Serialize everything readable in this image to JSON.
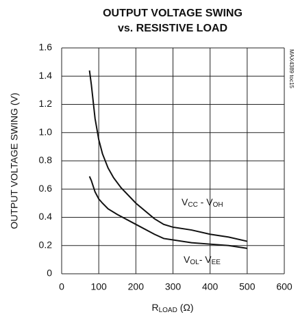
{
  "chart_data": {
    "type": "line",
    "title": [
      "OUTPUT VOLTAGE SWING",
      "vs. RESISTIVE LOAD"
    ],
    "y_label": "OUTPUT VOLTAGE SWING (V)",
    "x_label": [
      "R",
      "LOAD",
      " (Ω)"
    ],
    "annotation": "MAX4389 toc15",
    "xlim": [
      0,
      600
    ],
    "xticks": [
      0,
      100,
      200,
      300,
      400,
      500,
      600
    ],
    "ylim": [
      0,
      1.6
    ],
    "yticks": [
      0,
      {
        "value": 0.2,
        "label": "0.2"
      },
      {
        "value": 0.4,
        "label": "0.4"
      },
      {
        "value": 0.6,
        "label": "0.6"
      },
      {
        "value": 0.8,
        "label": "0.8"
      },
      {
        "value": 1,
        "label": "1.0"
      },
      {
        "value": 1.2,
        "label": "1.2"
      },
      {
        "value": 1.4,
        "label": "1.4"
      },
      {
        "value": 1.6,
        "label": "1.6"
      }
    ],
    "grid": true,
    "series": [
      {
        "name": [
          "V",
          "CC",
          " - V",
          "OH"
        ],
        "color": "#111",
        "x": [
          75,
          80,
          90,
          100,
          110,
          125,
          140,
          160,
          200,
          250,
          275,
          300,
          350,
          400,
          450,
          500
        ],
        "values": [
          1.44,
          1.34,
          1.1,
          0.95,
          0.85,
          0.75,
          0.68,
          0.61,
          0.5,
          0.39,
          0.35,
          0.33,
          0.31,
          0.28,
          0.26,
          0.23
        ]
      },
      {
        "name": [
          "V",
          "OL",
          "- V",
          "EE"
        ],
        "color": "#111",
        "x": [
          75,
          80,
          90,
          100,
          110,
          125,
          150,
          200,
          250,
          275,
          300,
          350,
          400,
          450,
          500
        ],
        "values": [
          0.69,
          0.66,
          0.58,
          0.53,
          0.5,
          0.46,
          0.42,
          0.35,
          0.28,
          0.25,
          0.24,
          0.22,
          0.21,
          0.2,
          0.18
        ]
      }
    ]
  }
}
